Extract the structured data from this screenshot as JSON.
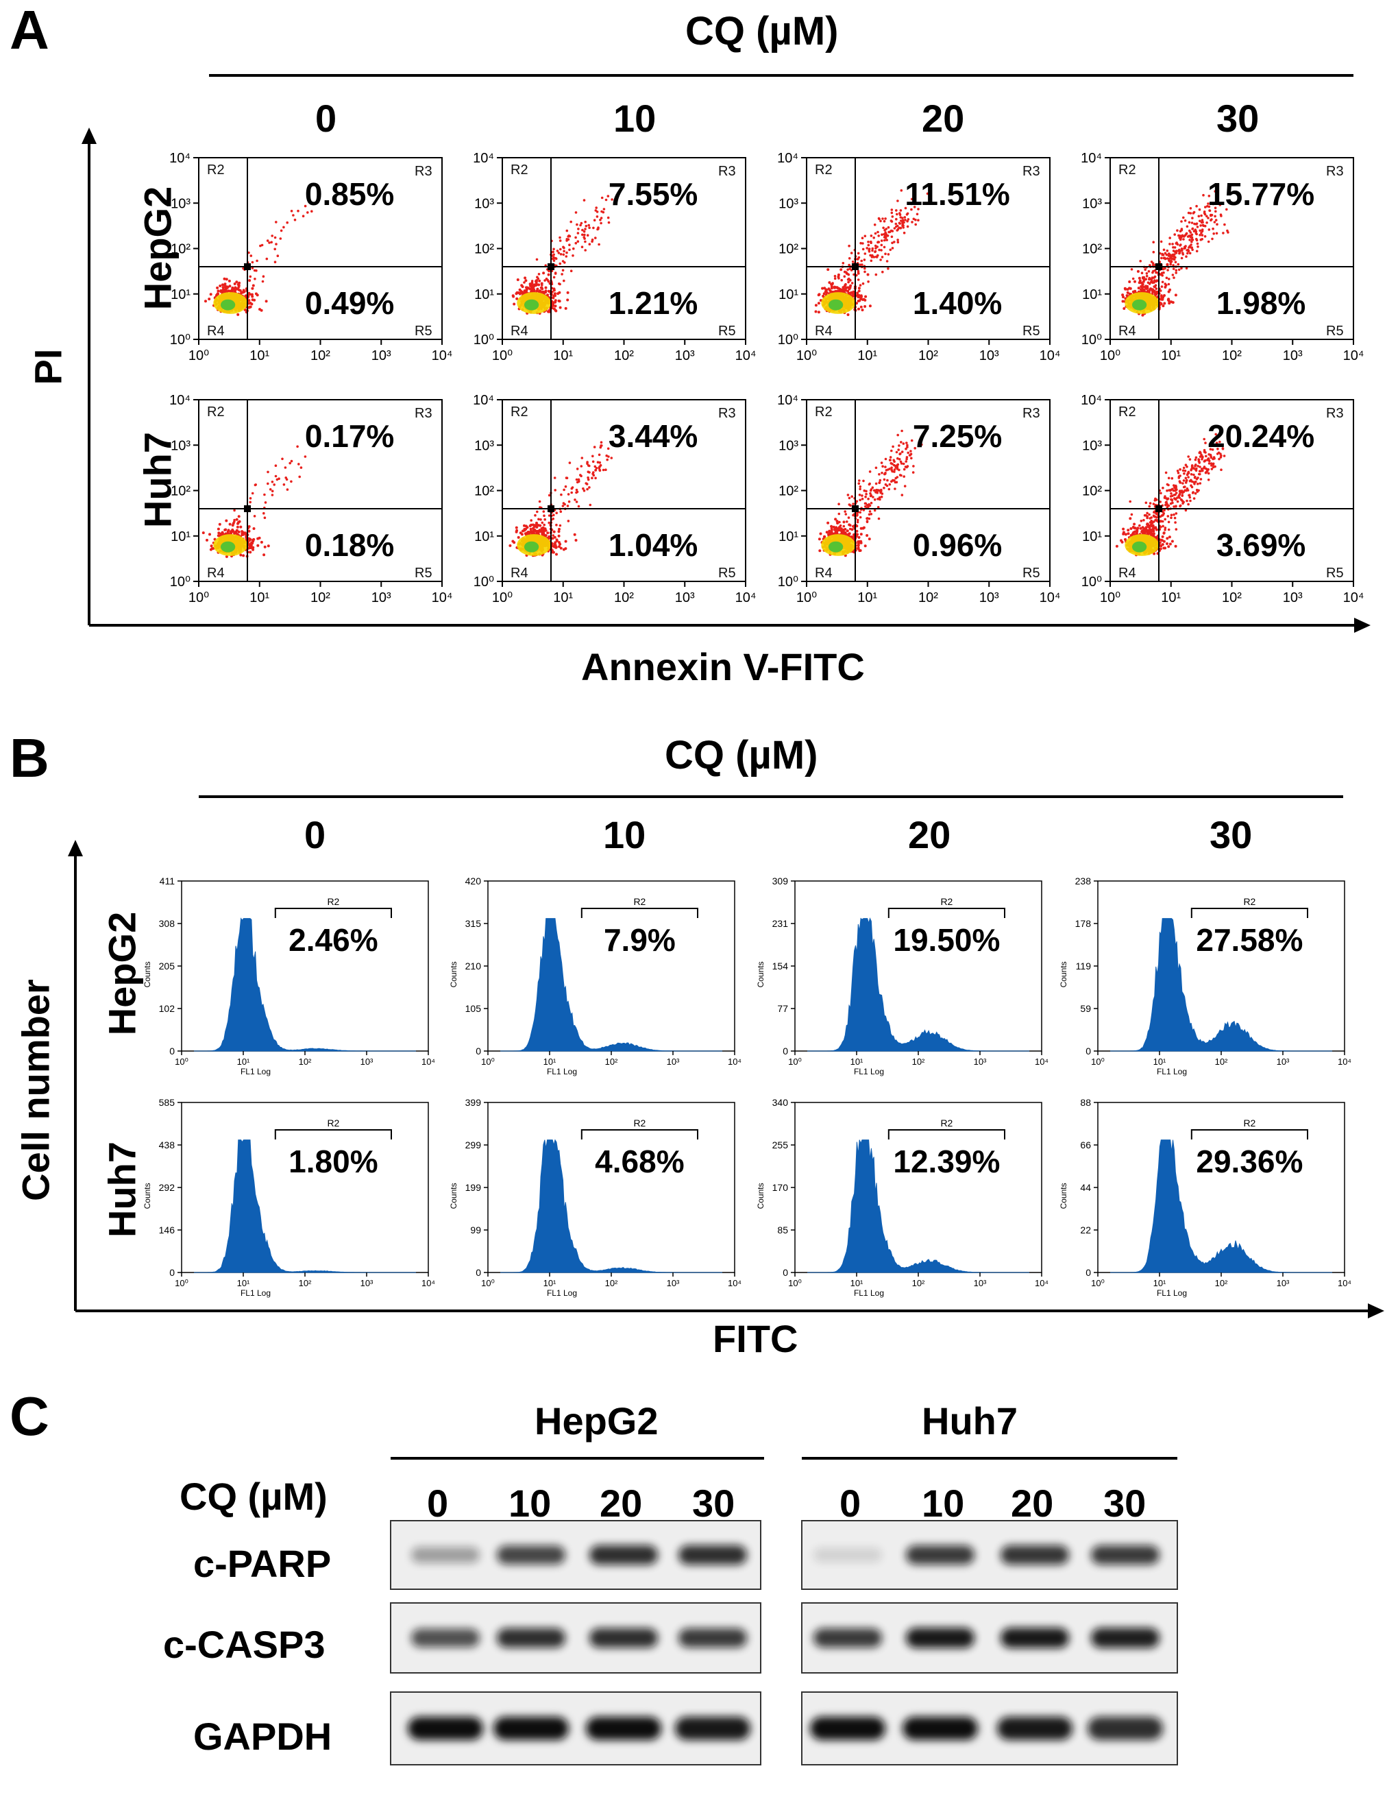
{
  "panel_A": {
    "label": "A",
    "cq_header": "CQ (µM)",
    "concentrations": [
      "0",
      "10",
      "20",
      "30"
    ],
    "row_labels": [
      "HepG2",
      "Huh7"
    ],
    "y_label": "PI",
    "x_label": "Annexin V-FITC",
    "region_labels": [
      "R2",
      "R3",
      "R4",
      "R5"
    ],
    "plots": [
      {
        "cell": "HepG2",
        "cq": "0",
        "late_apoptosis": "0.85%",
        "early_apoptosis": "0.49%"
      },
      {
        "cell": "HepG2",
        "cq": "10",
        "late_apoptosis": "7.55%",
        "early_apoptosis": "1.21%"
      },
      {
        "cell": "HepG2",
        "cq": "20",
        "late_apoptosis": "11.51%",
        "early_apoptosis": "1.40%"
      },
      {
        "cell": "HepG2",
        "cq": "30",
        "late_apoptosis": "15.77%",
        "early_apoptosis": "1.98%"
      },
      {
        "cell": "Huh7",
        "cq": "0",
        "late_apoptosis": "0.17%",
        "early_apoptosis": "0.18%"
      },
      {
        "cell": "Huh7",
        "cq": "10",
        "late_apoptosis": "3.44%",
        "early_apoptosis": "1.04%"
      },
      {
        "cell": "Huh7",
        "cq": "20",
        "late_apoptosis": "7.25%",
        "early_apoptosis": "0.96%"
      },
      {
        "cell": "Huh7",
        "cq": "30",
        "late_apoptosis": "20.24%",
        "early_apoptosis": "3.69%"
      }
    ]
  },
  "panel_B": {
    "label": "B",
    "cq_header": "CQ (µM)",
    "concentrations": [
      "0",
      "10",
      "20",
      "30"
    ],
    "row_labels": [
      "HepG2",
      "Huh7"
    ],
    "y_label": "Cell number",
    "x_label": "FITC",
    "hist_y_label": "Counts",
    "hist_x_label": "FL1 Log",
    "gate_label": "R2",
    "histograms": [
      {
        "cell": "HepG2",
        "cq": "0",
        "percent": "2.46%",
        "yticks": [
          "411",
          "308",
          "205",
          "102",
          "0"
        ]
      },
      {
        "cell": "HepG2",
        "cq": "10",
        "percent": "7.9%",
        "yticks": [
          "420",
          "315",
          "210",
          "105",
          "0"
        ]
      },
      {
        "cell": "HepG2",
        "cq": "20",
        "percent": "19.50%",
        "yticks": [
          "309",
          "231",
          "154",
          "77",
          "0"
        ]
      },
      {
        "cell": "HepG2",
        "cq": "30",
        "percent": "27.58%",
        "yticks": [
          "238",
          "178",
          "119",
          "59",
          "0"
        ]
      },
      {
        "cell": "Huh7",
        "cq": "0",
        "percent": "1.80%",
        "yticks": [
          "585",
          "438",
          "292",
          "146",
          "0"
        ]
      },
      {
        "cell": "Huh7",
        "cq": "10",
        "percent": "4.68%",
        "yticks": [
          "399",
          "299",
          "199",
          "99",
          "0"
        ]
      },
      {
        "cell": "Huh7",
        "cq": "20",
        "percent": "12.39%",
        "yticks": [
          "340",
          "255",
          "170",
          "85",
          "0"
        ]
      },
      {
        "cell": "Huh7",
        "cq": "30",
        "percent": "29.36%",
        "yticks": [
          "88",
          "66",
          "44",
          "22",
          "0"
        ]
      }
    ]
  },
  "panel_C": {
    "label": "C",
    "cell_lines": [
      "HepG2",
      "Huh7"
    ],
    "cq_label": "CQ (µM)",
    "concentrations": [
      "0",
      "10",
      "20",
      "30"
    ],
    "blots": [
      "c-PARP",
      "c-CASP3",
      "GAPDH"
    ]
  },
  "colors": {
    "dot": "#e8201c",
    "dense": "#f5d600",
    "core": "#45c23a",
    "hist": "#0f5fb3"
  }
}
